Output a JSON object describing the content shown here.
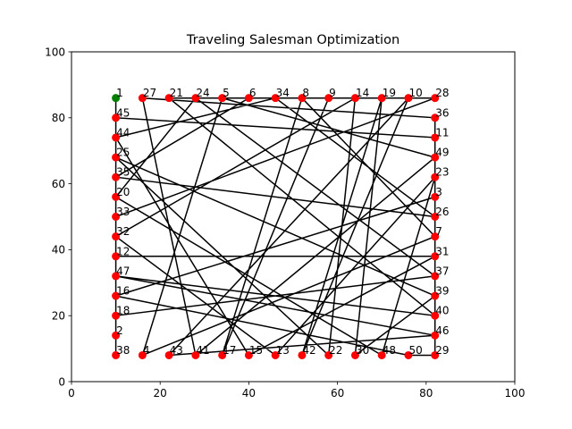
{
  "chart_data": {
    "type": "scatter",
    "title": "Traveling Salesman Optimization",
    "xlabel": "",
    "ylabel": "",
    "xlim": [
      0,
      100
    ],
    "ylim": [
      0,
      100
    ],
    "xticks": [
      0,
      20,
      40,
      60,
      80,
      100
    ],
    "yticks": [
      0,
      20,
      40,
      60,
      80,
      100
    ],
    "grid": false,
    "colors": {
      "city": "#ff0000",
      "start_city": "#008000",
      "route": "#000000"
    },
    "cities": [
      {
        "id": "1",
        "x": 10,
        "y": 86
      },
      {
        "id": "27",
        "x": 16,
        "y": 86
      },
      {
        "id": "21",
        "x": 22,
        "y": 86
      },
      {
        "id": "24",
        "x": 28,
        "y": 86
      },
      {
        "id": "5",
        "x": 34,
        "y": 86
      },
      {
        "id": "6",
        "x": 40,
        "y": 86
      },
      {
        "id": "34",
        "x": 46,
        "y": 86
      },
      {
        "id": "8",
        "x": 52,
        "y": 86
      },
      {
        "id": "9",
        "x": 58,
        "y": 86
      },
      {
        "id": "14",
        "x": 64,
        "y": 86
      },
      {
        "id": "19",
        "x": 70,
        "y": 86
      },
      {
        "id": "10",
        "x": 76,
        "y": 86
      },
      {
        "id": "28",
        "x": 82,
        "y": 86
      },
      {
        "id": "45",
        "x": 10,
        "y": 80
      },
      {
        "id": "36",
        "x": 82,
        "y": 80
      },
      {
        "id": "44",
        "x": 10,
        "y": 74
      },
      {
        "id": "11",
        "x": 82,
        "y": 74
      },
      {
        "id": "25",
        "x": 10,
        "y": 68
      },
      {
        "id": "49",
        "x": 82,
        "y": 68
      },
      {
        "id": "35",
        "x": 10,
        "y": 62
      },
      {
        "id": "23",
        "x": 82,
        "y": 62
      },
      {
        "id": "20",
        "x": 10,
        "y": 56
      },
      {
        "id": "3",
        "x": 82,
        "y": 56
      },
      {
        "id": "33",
        "x": 10,
        "y": 50
      },
      {
        "id": "26",
        "x": 82,
        "y": 50
      },
      {
        "id": "32",
        "x": 10,
        "y": 44
      },
      {
        "id": "7",
        "x": 82,
        "y": 44
      },
      {
        "id": "12",
        "x": 10,
        "y": 38
      },
      {
        "id": "31",
        "x": 82,
        "y": 38
      },
      {
        "id": "47",
        "x": 10,
        "y": 32
      },
      {
        "id": "37",
        "x": 82,
        "y": 32
      },
      {
        "id": "16",
        "x": 10,
        "y": 26
      },
      {
        "id": "39",
        "x": 82,
        "y": 26
      },
      {
        "id": "18",
        "x": 10,
        "y": 20
      },
      {
        "id": "40",
        "x": 82,
        "y": 20
      },
      {
        "id": "2",
        "x": 10,
        "y": 14
      },
      {
        "id": "46",
        "x": 82,
        "y": 14
      },
      {
        "id": "38",
        "x": 10,
        "y": 8
      },
      {
        "id": "4",
        "x": 16,
        "y": 8
      },
      {
        "id": "43",
        "x": 22,
        "y": 8
      },
      {
        "id": "41",
        "x": 28,
        "y": 8
      },
      {
        "id": "17",
        "x": 34,
        "y": 8
      },
      {
        "id": "15",
        "x": 40,
        "y": 8
      },
      {
        "id": "13",
        "x": 46,
        "y": 8
      },
      {
        "id": "42",
        "x": 52,
        "y": 8
      },
      {
        "id": "22",
        "x": 58,
        "y": 8
      },
      {
        "id": "30",
        "x": 64,
        "y": 8
      },
      {
        "id": "48",
        "x": 70,
        "y": 8
      },
      {
        "id": "50",
        "x": 76,
        "y": 8
      },
      {
        "id": "29",
        "x": 82,
        "y": 8
      }
    ],
    "start_city": "1",
    "route": [
      "1",
      "2",
      "38",
      "45",
      "11",
      "29",
      "50",
      "16",
      "3",
      "36",
      "27",
      "41",
      "49",
      "5",
      "4",
      "7",
      "8",
      "17",
      "9",
      "6",
      "35",
      "26",
      "34",
      "44",
      "15",
      "31",
      "12",
      "33",
      "28",
      "21",
      "40",
      "47",
      "46",
      "43",
      "10",
      "42",
      "19",
      "30",
      "39",
      "25",
      "22",
      "14",
      "32",
      "13",
      "23",
      "48",
      "20",
      "24",
      "37",
      "18",
      "1"
    ]
  }
}
